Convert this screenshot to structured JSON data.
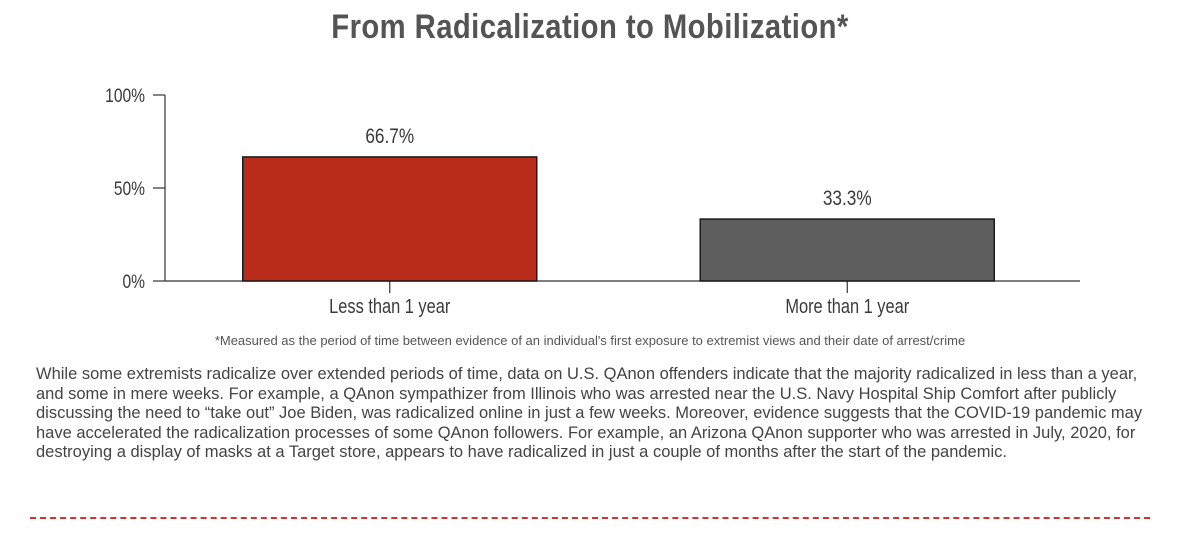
{
  "chart_data": {
    "type": "bar",
    "title": "From Radicalization to Mobilization*",
    "categories": [
      "Less than 1 year",
      "More than 1 year"
    ],
    "values": [
      66.7,
      33.3
    ],
    "data_labels": [
      "66.7%",
      "33.3%"
    ],
    "colors": [
      "#b92c19",
      "#5e5e5e"
    ],
    "ylim": [
      0,
      100
    ],
    "yticks": [
      0,
      50,
      100
    ],
    "ytick_labels": [
      "0%",
      "50%",
      "100%"
    ],
    "xlabel": "",
    "ylabel": "",
    "grid": false,
    "legend": "none"
  },
  "footnote": "*Measured as the period of time between evidence of an individual's first exposure to extremist views and their date of arrest/crime",
  "body_text": "While some extremists radicalize over extended periods of time, data on U.S. QAnon offenders indicate that the majority radicalized in less than a year, and some in mere weeks. For example, a QAnon sympathizer from Illinois who was arrested near the U.S. Navy Hospital Ship Comfort after publicly discussing the need to “take out” Joe Biden, was radicalized online in just a few weeks. Moreover, evidence suggests that the COVID-19 pandemic may have accelerated the radicalization processes of some QAnon followers. For example, an Arizona QAnon supporter who was arrested in July, 2020, for destroying a display of masks at a Target store, appears to have radicalized in just a couple of months after the start of the pandemic.",
  "accent_color": "#d9302a"
}
